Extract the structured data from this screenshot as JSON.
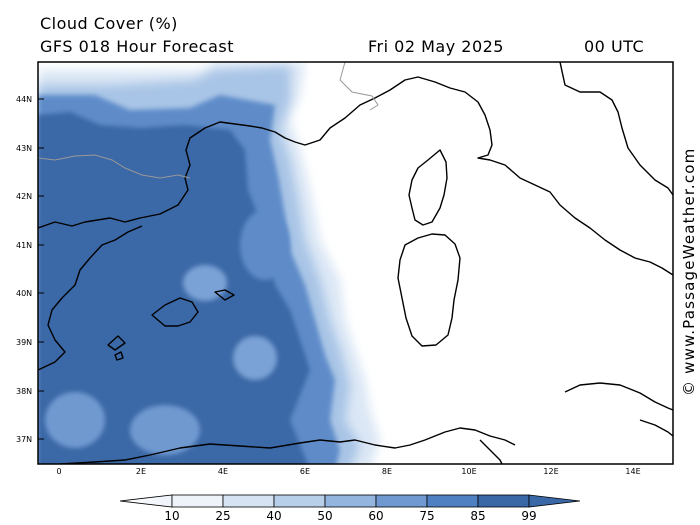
{
  "header": {
    "title_line1": "Cloud Cover (%)",
    "title_line2": "GFS 018 Hour Forecast",
    "date": "Fri 02 May 2025",
    "time": "00 UTC"
  },
  "axes": {
    "lat_labels": [
      "44N",
      "43N",
      "42N",
      "41N",
      "40N",
      "39N",
      "38N",
      "37N"
    ],
    "lon_labels": [
      "0",
      "2E",
      "4E",
      "6E",
      "8E",
      "10E",
      "12E",
      "14E"
    ]
  },
  "credit": "© www.PassageWeather.com",
  "legend": {
    "labels": [
      "10",
      "25",
      "40",
      "50",
      "60",
      "75",
      "85",
      "99"
    ],
    "colors": [
      "#ffffff",
      "#eef3fa",
      "#d6e3f3",
      "#b8cfe9",
      "#93b5de",
      "#6f99d0",
      "#4f80c2",
      "#3a67a6"
    ]
  },
  "colors": {
    "cloud_dense": "#3a67a6",
    "cloud_mid": "#5f8cc9",
    "cloud_light": "#9dbde3",
    "cloud_faint": "#dbe7f5",
    "coast": "#000000",
    "border": "#999999"
  }
}
